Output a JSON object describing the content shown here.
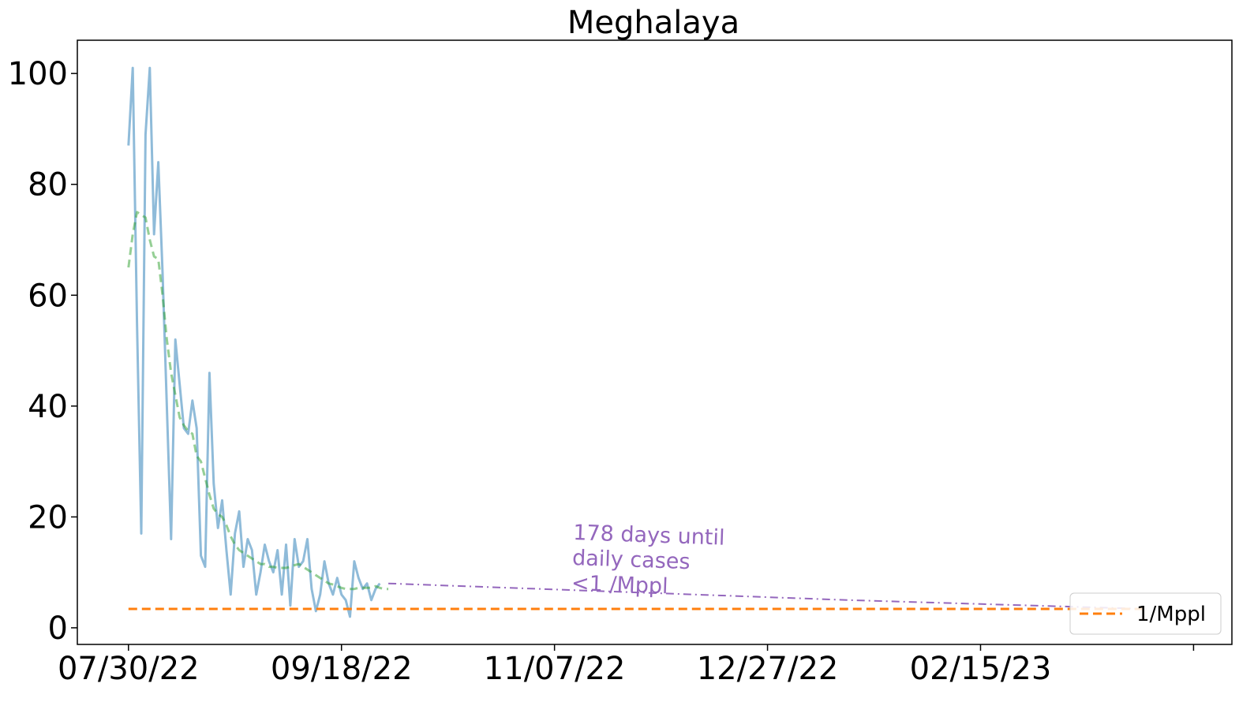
{
  "chart_data": {
    "type": "line",
    "title": "Meghalaya",
    "xlabel": "",
    "ylabel": "",
    "x_tick_labels": [
      "07/30/22",
      "09/18/22",
      "11/07/22",
      "12/27/22",
      "02/15/23",
      ""
    ],
    "x_ticks": [
      "2022-07-30",
      "2022-09-18",
      "2022-11-07",
      "2022-12-27",
      "2023-02-15",
      "2023-04-06"
    ],
    "xlim": [
      "2022-07-18",
      "2023-04-15"
    ],
    "ylim": [
      -3,
      106
    ],
    "y_ticks": [
      0,
      20,
      40,
      60,
      80,
      100
    ],
    "grid": false,
    "legend": {
      "location": "bottom-right",
      "entries": [
        "1/Mppl"
      ]
    },
    "annotation": {
      "text_lines": [
        "178 days until",
        "daily cases",
        "<1 /Mppl"
      ],
      "color": "#9467bd"
    },
    "series": [
      {
        "key": "daily",
        "color": "#1f77b4",
        "x": [
          "2022-07-30",
          "2022-07-31",
          "2022-08-01",
          "2022-08-02",
          "2022-08-03",
          "2022-08-04",
          "2022-08-05",
          "2022-08-06",
          "2022-08-07",
          "2022-08-08",
          "2022-08-09",
          "2022-08-10",
          "2022-08-11",
          "2022-08-12",
          "2022-08-13",
          "2022-08-14",
          "2022-08-15",
          "2022-08-16",
          "2022-08-17",
          "2022-08-18",
          "2022-08-19",
          "2022-08-20",
          "2022-08-21",
          "2022-08-22",
          "2022-08-23",
          "2022-08-24",
          "2022-08-25",
          "2022-08-26",
          "2022-08-27",
          "2022-08-28",
          "2022-08-29",
          "2022-08-30",
          "2022-08-31",
          "2022-09-01",
          "2022-09-02",
          "2022-09-03",
          "2022-09-04",
          "2022-09-05",
          "2022-09-06",
          "2022-09-07",
          "2022-09-08",
          "2022-09-09",
          "2022-09-10",
          "2022-09-11",
          "2022-09-12",
          "2022-09-13",
          "2022-09-14",
          "2022-09-15",
          "2022-09-16",
          "2022-09-17",
          "2022-09-18",
          "2022-09-19",
          "2022-09-20",
          "2022-09-21",
          "2022-09-22",
          "2022-09-23",
          "2022-09-24",
          "2022-09-25",
          "2022-09-26",
          "2022-09-27",
          "2022-09-28",
          "2022-09-29"
        ],
        "values": [
          87,
          101,
          55,
          17,
          89,
          101,
          71,
          84,
          64,
          40,
          16,
          52,
          44,
          36,
          35,
          41,
          36,
          13,
          11,
          46,
          26,
          18,
          23,
          14,
          6,
          17,
          21,
          11,
          16,
          14,
          6,
          10,
          15,
          12,
          10,
          14,
          6,
          15,
          4,
          16,
          11,
          12,
          16,
          7,
          3,
          6,
          12,
          8,
          6,
          9,
          6,
          5,
          2,
          12,
          9,
          7,
          8,
          5,
          7,
          8,
          null,
          null
        ]
      },
      {
        "key": "7-day average",
        "color": "#2ca02c",
        "x": [
          "2022-07-30",
          "2022-07-31",
          "2022-08-01",
          "2022-08-02",
          "2022-08-03",
          "2022-08-04",
          "2022-08-05",
          "2022-08-06",
          "2022-08-07",
          "2022-08-08",
          "2022-08-09",
          "2022-08-10",
          "2022-08-11",
          "2022-08-12",
          "2022-08-13",
          "2022-08-14",
          "2022-08-15",
          "2022-08-16",
          "2022-08-17",
          "2022-08-18",
          "2022-08-19",
          "2022-08-20",
          "2022-08-21",
          "2022-08-22",
          "2022-08-23",
          "2022-08-24",
          "2022-08-25",
          "2022-08-26",
          "2022-08-27",
          "2022-08-28",
          "2022-08-29",
          "2022-08-30",
          "2022-08-31",
          "2022-09-01",
          "2022-09-02",
          "2022-09-03",
          "2022-09-04",
          "2022-09-05",
          "2022-09-06",
          "2022-09-07",
          "2022-09-08",
          "2022-09-09",
          "2022-09-10",
          "2022-09-11",
          "2022-09-12",
          "2022-09-13",
          "2022-09-14",
          "2022-09-15",
          "2022-09-16",
          "2022-09-17",
          "2022-09-18",
          "2022-09-19",
          "2022-09-20",
          "2022-09-21",
          "2022-09-22",
          "2022-09-23",
          "2022-09-24",
          "2022-09-25",
          "2022-09-26",
          "2022-09-27",
          "2022-09-28",
          "2022-09-29"
        ],
        "values": [
          65,
          71,
          75,
          74.5,
          74,
          70,
          67,
          66.5,
          60,
          52,
          46,
          42,
          38,
          36.5,
          35.5,
          35,
          31,
          30,
          27,
          24,
          21.5,
          20.5,
          20,
          18.5,
          16.5,
          15,
          14,
          13.5,
          13,
          12.5,
          12,
          11.5,
          11.5,
          11,
          11,
          10.8,
          10.8,
          10.8,
          11,
          11.3,
          11.5,
          11,
          10.5,
          10,
          9.5,
          9,
          8.5,
          8,
          7.8,
          7.5,
          7.2,
          7,
          7,
          7,
          7.2,
          7.2,
          7.2,
          7.2,
          7.5,
          7.2,
          7,
          7
        ]
      },
      {
        "key": "projection",
        "color": "#9467bd",
        "x": [
          "2022-09-29",
          "2023-01-15",
          "2023-03-26"
        ],
        "values": [
          8,
          5,
          3.4
        ]
      },
      {
        "key": "threshold",
        "name": "1/Mppl",
        "color": "#ff7f0e",
        "x": [
          "2022-07-30",
          "2023-03-26"
        ],
        "values": [
          3.4,
          3.4
        ]
      }
    ]
  }
}
